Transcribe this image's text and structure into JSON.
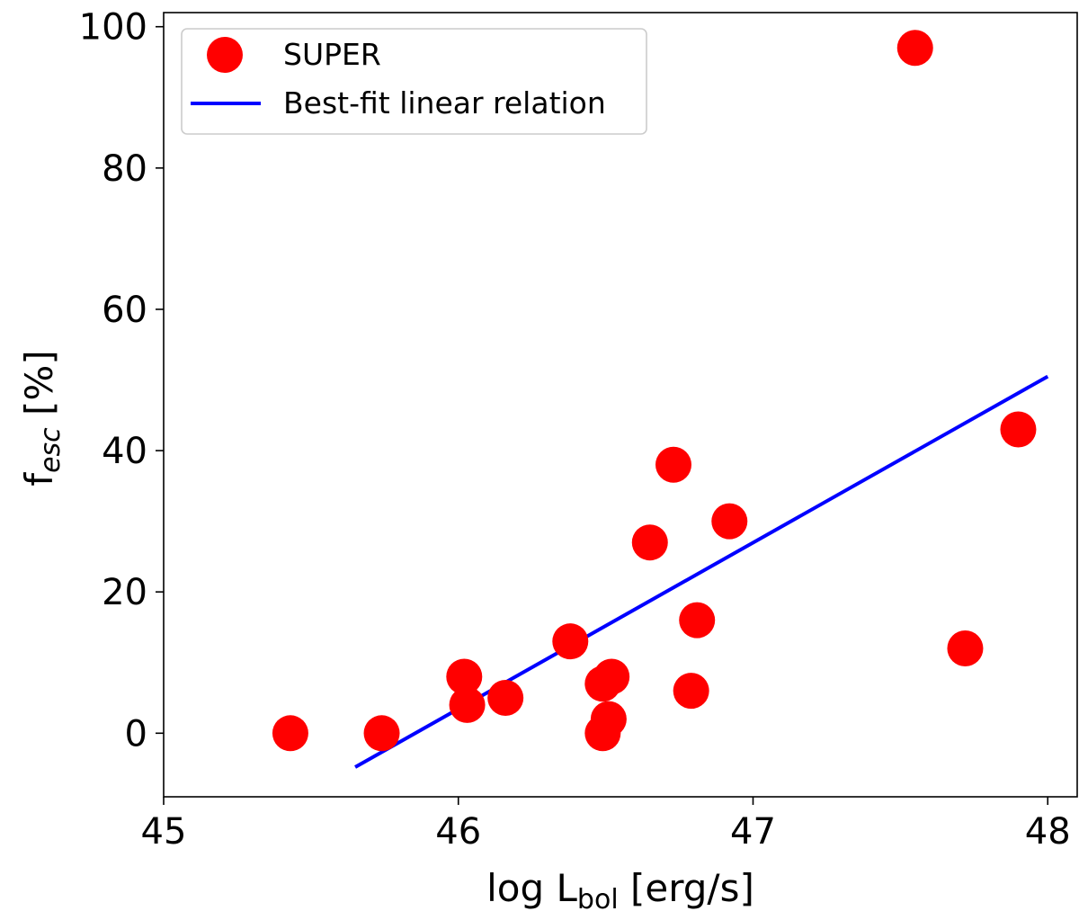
{
  "chart_data": {
    "type": "scatter",
    "title": "",
    "xlabel": "log L_bol [erg/s]",
    "xlabel_main": "log L",
    "xlabel_sub": "bol",
    "xlabel_rest": " [erg/s]",
    "ylabel": "f_esc [%]",
    "ylabel_main": "f",
    "ylabel_sub": "esc",
    "ylabel_rest": " [%]",
    "xlim": [
      45.0,
      48.1
    ],
    "ylim": [
      -9,
      102
    ],
    "xticks": [
      45,
      46,
      47,
      48
    ],
    "yticks": [
      0,
      20,
      40,
      60,
      80,
      100
    ],
    "grid": false,
    "legend_position": "upper-left",
    "colors": {
      "points": "#ff0000",
      "line": "#0000ff"
    },
    "series": [
      {
        "name": "SUPER",
        "kind": "scatter",
        "points": [
          {
            "x": 45.43,
            "y": 0
          },
          {
            "x": 45.74,
            "y": 0
          },
          {
            "x": 46.02,
            "y": 8
          },
          {
            "x": 46.03,
            "y": 4
          },
          {
            "x": 46.16,
            "y": 5
          },
          {
            "x": 46.38,
            "y": 13
          },
          {
            "x": 46.49,
            "y": 7
          },
          {
            "x": 46.49,
            "y": 0
          },
          {
            "x": 46.51,
            "y": 2
          },
          {
            "x": 46.52,
            "y": 8
          },
          {
            "x": 46.65,
            "y": 27
          },
          {
            "x": 46.73,
            "y": 38
          },
          {
            "x": 46.79,
            "y": 6
          },
          {
            "x": 46.81,
            "y": 16
          },
          {
            "x": 46.92,
            "y": 30
          },
          {
            "x": 47.55,
            "y": 97
          },
          {
            "x": 47.72,
            "y": 12
          },
          {
            "x": 47.9,
            "y": 43
          }
        ]
      },
      {
        "name": "Best-fit linear relation",
        "kind": "line",
        "points": [
          {
            "x": 45.65,
            "y": -4.8
          },
          {
            "x": 48.0,
            "y": 50.5
          }
        ]
      }
    ]
  }
}
